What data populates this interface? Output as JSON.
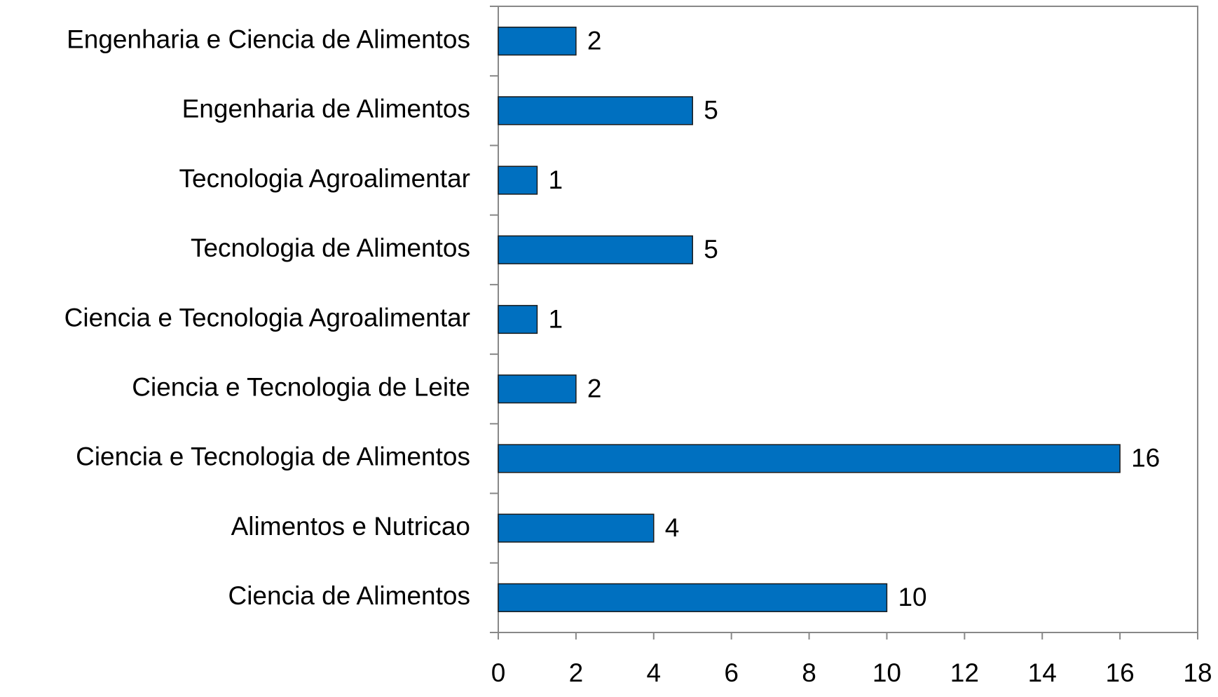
{
  "chart_data": {
    "type": "hbar",
    "categories": [
      "Engenharia e Ciencia de Alimentos",
      "Engenharia de Alimentos",
      "Tecnologia Agroalimentar",
      "Tecnologia de Alimentos",
      "Ciencia e Tecnologia Agroalimentar",
      "Ciencia e Tecnologia de Leite",
      "Ciencia e Tecnologia de Alimentos",
      "Alimentos e Nutricao",
      "Ciencia de Alimentos"
    ],
    "values": [
      2,
      5,
      1,
      5,
      1,
      2,
      16,
      4,
      10
    ],
    "color": "#0070c0",
    "xlim": [
      0,
      18
    ],
    "xticks": [
      0,
      2,
      4,
      6,
      8,
      10,
      12,
      14,
      16,
      18
    ],
    "grid": false
  }
}
